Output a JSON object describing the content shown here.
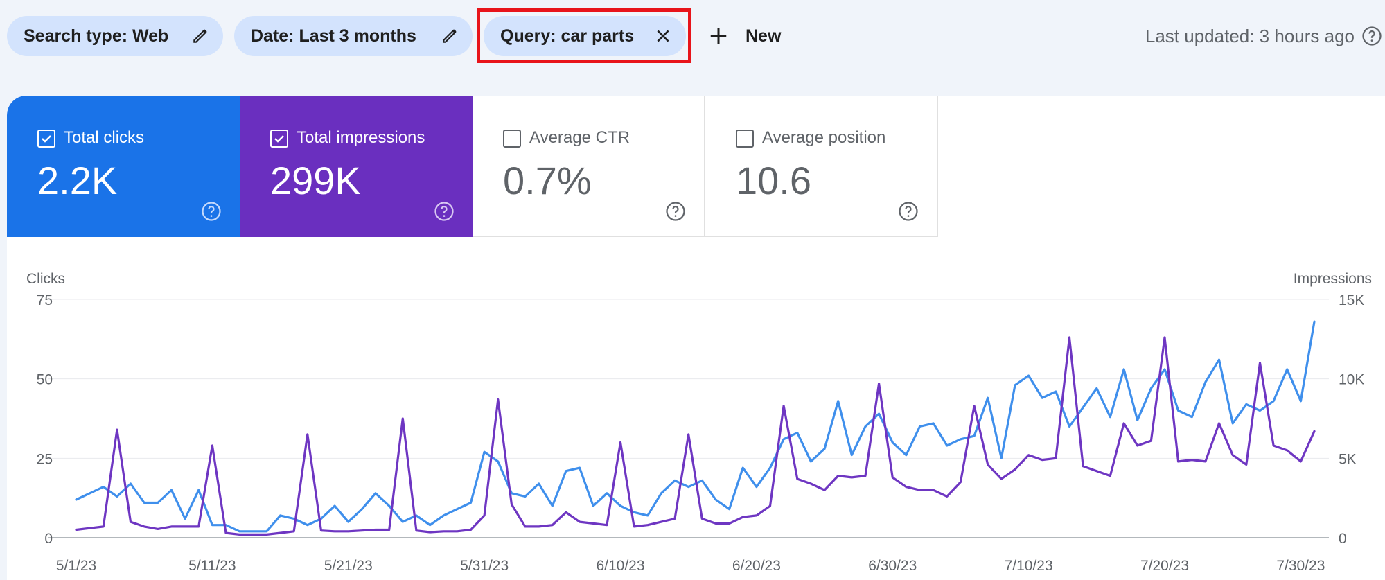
{
  "filters": {
    "search_type": "Search type: Web",
    "date": "Date: Last 3 months",
    "query": "Query: car parts",
    "new_label": "New"
  },
  "last_updated": "Last updated: 3 hours ago",
  "metrics": {
    "clicks": {
      "label": "Total clicks",
      "value": "2.2K",
      "checked": true
    },
    "impressions": {
      "label": "Total impressions",
      "value": "299K",
      "checked": true
    },
    "ctr": {
      "label": "Average CTR",
      "value": "0.7%",
      "checked": false
    },
    "position": {
      "label": "Average position",
      "value": "10.6",
      "checked": false
    }
  },
  "colors": {
    "clicks": "#1a73e8",
    "clicks_line": "#3f8fec",
    "impressions": "#6a2fbf",
    "impressions_line": "#6e36c2",
    "chip": "#d3e3fd",
    "highlight": "#e8141a"
  },
  "icons": {
    "edit": "pencil-icon",
    "close": "close-icon",
    "add": "plus-icon",
    "help": "help-circle-icon",
    "checkbox": "checkbox-icon"
  },
  "chart_data": {
    "type": "line",
    "left_axis_label": "Clicks",
    "right_axis_label": "Impressions",
    "left_ticks": [
      "0",
      "25",
      "50",
      "75"
    ],
    "right_ticks": [
      "0",
      "5K",
      "10K",
      "15K"
    ],
    "ylim_left": [
      0,
      75
    ],
    "ylim_right": [
      0,
      15000
    ],
    "x_tick_labels": [
      "5/1/23",
      "5/11/23",
      "5/21/23",
      "5/31/23",
      "6/10/23",
      "6/20/23",
      "6/30/23",
      "7/10/23",
      "7/20/23",
      "7/30/23"
    ],
    "x_start": "5/1/23",
    "x_end": "7/30/23",
    "grid": true,
    "series": [
      {
        "name": "Clicks",
        "axis": "left",
        "values": [
          12,
          14,
          16,
          13,
          17,
          11,
          11,
          15,
          6,
          15,
          4,
          4,
          2,
          2,
          2,
          7,
          6,
          4,
          6,
          10,
          5,
          9,
          14,
          10,
          5,
          7,
          4,
          7,
          9,
          11,
          27,
          24,
          14,
          13,
          17,
          10,
          21,
          22,
          10,
          14,
          10,
          8,
          7,
          14,
          18,
          16,
          18,
          12,
          9,
          22,
          16,
          22,
          31,
          33,
          24,
          28,
          43,
          26,
          35,
          39,
          30,
          26,
          35,
          36,
          29,
          31,
          32,
          44,
          25,
          48,
          51,
          44,
          46,
          35,
          41,
          47,
          38,
          53,
          37,
          47,
          53,
          40,
          38,
          49,
          56,
          36,
          42,
          40,
          43,
          53,
          43,
          68
        ]
      },
      {
        "name": "Impressions",
        "axis": "right",
        "values": [
          500,
          600,
          700,
          6800,
          1000,
          700,
          550,
          700,
          700,
          700,
          5800,
          300,
          200,
          200,
          200,
          300,
          400,
          6500,
          450,
          400,
          400,
          450,
          500,
          500,
          7500,
          450,
          350,
          400,
          400,
          500,
          1400,
          8700,
          2100,
          700,
          700,
          800,
          1600,
          1000,
          900,
          800,
          6000,
          700,
          800,
          1000,
          1200,
          6500,
          1200,
          900,
          900,
          1300,
          1400,
          2000,
          8300,
          3700,
          3400,
          3000,
          3900,
          3800,
          3900,
          9700,
          3800,
          3200,
          3000,
          3000,
          2600,
          3500,
          8300,
          4600,
          3700,
          4300,
          5200,
          4900,
          5000,
          12600,
          4500,
          4200,
          3900,
          7200,
          5800,
          6100,
          12600,
          4800,
          4900,
          4800,
          7200,
          5200,
          4600,
          11000,
          5800,
          5500,
          4800,
          6700
        ]
      }
    ]
  }
}
